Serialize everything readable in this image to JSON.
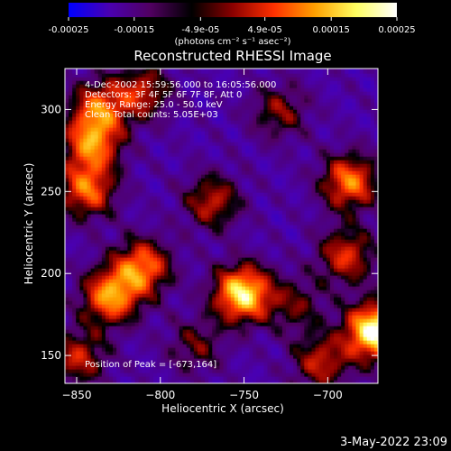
{
  "colorbar": {
    "tick_labels": [
      "-0.00025",
      "-0.00015",
      "-4.9e-05",
      "4.9e-05",
      "0.00015",
      "0.00025"
    ],
    "tick_values": [
      -0.00025,
      -0.00015,
      -4.9e-05,
      4.9e-05,
      0.00015,
      0.00025
    ],
    "range": [
      -0.00025,
      0.00025
    ],
    "unit_label": "(photons cm⁻² s⁻¹ asec⁻²)",
    "colors": [
      "#0000ff",
      "#4a00b0",
      "#500060",
      "#000000",
      "#8b0000",
      "#ff3000",
      "#ffa000",
      "#ffff60",
      "#ffffff"
    ]
  },
  "chart_data": {
    "type": "heatmap",
    "title": "Reconstructed RHESSI Image",
    "xlabel": "Heliocentric X (arcsec)",
    "ylabel": "Heliocentric Y (arcsec)",
    "xlim": [
      -857,
      -670
    ],
    "ylim": [
      133,
      325
    ],
    "x_ticks": [
      -850,
      -800,
      -750,
      -700
    ],
    "x_tick_labels": [
      "−850",
      "−800",
      "−750",
      "−700"
    ],
    "y_ticks": [
      150,
      200,
      250,
      300
    ],
    "y_tick_labels": [
      "150",
      "200",
      "250",
      "300"
    ],
    "info_lines": [
      "4-Dec-2002 15:59:56.000 to 16:05:56.000",
      "Detectors: 3F 4F 5F 6F 7F 8F, Att 0",
      "Energy Range: 25.0 - 50.0 keV",
      "Clean     Total counts: 5.05E+03"
    ],
    "peak_label": "Position of Peak = [-673,164]",
    "peak": [
      -673,
      164
    ],
    "sources": [
      {
        "x": -673,
        "y": 164,
        "v": 1.0
      },
      {
        "x": -752,
        "y": 187,
        "v": 0.9
      },
      {
        "x": -812,
        "y": 203,
        "v": 0.65
      },
      {
        "x": -831,
        "y": 185,
        "v": 0.7
      },
      {
        "x": -842,
        "y": 278,
        "v": 0.62
      },
      {
        "x": -845,
        "y": 250,
        "v": 0.6
      },
      {
        "x": -838,
        "y": 300,
        "v": 0.55
      },
      {
        "x": -688,
        "y": 255,
        "v": 0.65
      },
      {
        "x": -690,
        "y": 210,
        "v": 0.5
      },
      {
        "x": -770,
        "y": 243,
        "v": 0.45
      },
      {
        "x": -812,
        "y": 310,
        "v": 0.45
      },
      {
        "x": -730,
        "y": 298,
        "v": 0.35
      },
      {
        "x": -705,
        "y": 145,
        "v": 0.45
      },
      {
        "x": -850,
        "y": 148,
        "v": 0.45
      },
      {
        "x": -780,
        "y": 155,
        "v": 0.3
      },
      {
        "x": -720,
        "y": 180,
        "v": 0.3
      }
    ]
  },
  "timestamp": "3-May-2022 23:09"
}
